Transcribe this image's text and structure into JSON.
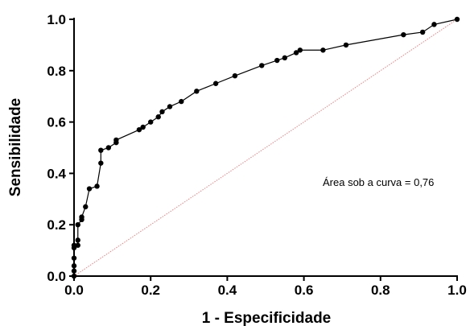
{
  "chart_data": {
    "type": "line",
    "xlabel": "1 - Especificidade",
    "ylabel": "Sensibilidade",
    "xlim": [
      0,
      1
    ],
    "ylim": [
      0,
      1
    ],
    "x_ticks": [
      "0.0",
      "0.2",
      "0.4",
      "0.6",
      "0.8",
      "1.0"
    ],
    "y_ticks": [
      "0.0",
      "0.2",
      "0.4",
      "0.6",
      "0.8",
      "1.0"
    ],
    "annotation": "Área sob a curva = 0,76",
    "grid": false,
    "colors": {
      "roc": "#000000",
      "reference": "#f08080"
    },
    "series": [
      {
        "x": [
          0,
          0,
          0,
          0,
          0,
          0,
          0.01,
          0.01,
          0.01,
          0.02,
          0.02,
          0.03,
          0.04,
          0.06,
          0.07,
          0.07,
          0.09,
          0.11,
          0.11,
          0.17,
          0.18,
          0.2,
          0.22,
          0.23,
          0.25,
          0.28,
          0.32,
          0.37,
          0.42,
          0.49,
          0.53,
          0.55,
          0.58,
          0.59,
          0.65,
          0.71,
          0.86,
          0.91,
          0.94,
          1.0
        ],
        "y": [
          0,
          0.02,
          0.04,
          0.07,
          0.11,
          0.12,
          0.12,
          0.14,
          0.2,
          0.22,
          0.23,
          0.27,
          0.34,
          0.35,
          0.44,
          0.49,
          0.5,
          0.52,
          0.53,
          0.57,
          0.58,
          0.6,
          0.62,
          0.64,
          0.66,
          0.68,
          0.72,
          0.75,
          0.78,
          0.82,
          0.84,
          0.85,
          0.87,
          0.88,
          0.88,
          0.9,
          0.94,
          0.95,
          0.98,
          1.0
        ]
      }
    ]
  }
}
